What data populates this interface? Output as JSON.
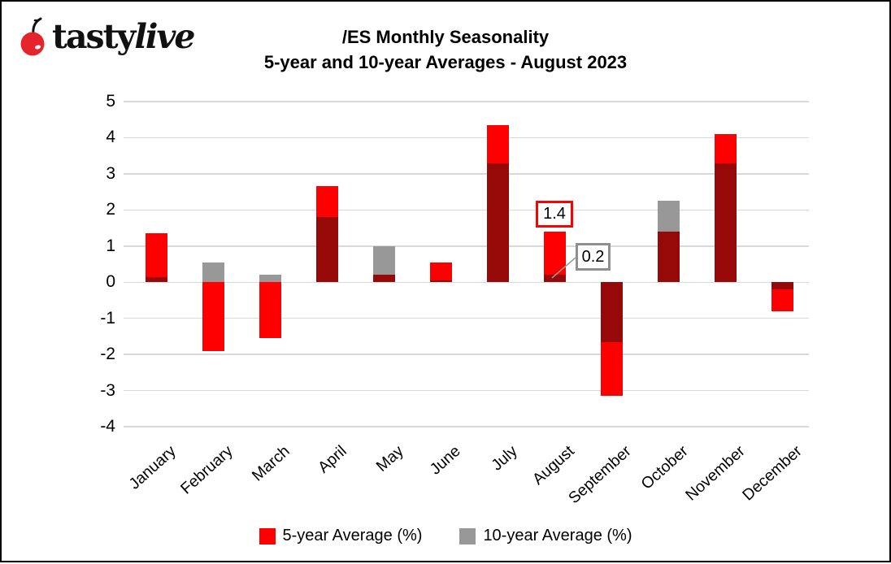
{
  "logo": {
    "brand": "tastylive",
    "brand_prefix": "tasty",
    "brand_suffix": "live",
    "icon": "cherry-icon",
    "cherry_color": "#e4262c"
  },
  "title": {
    "line1": "/ES Monthly Seasonality",
    "line2": "5-year and 10-year Averages - August 2023"
  },
  "legend": [
    {
      "label": "5-year Average (%)",
      "color": "#ff0000"
    },
    {
      "label": "10-year Average (%)",
      "color": "#989898"
    }
  ],
  "callouts": [
    {
      "value": "1.4",
      "border_color": "#ff0000",
      "series": "5-year Average (%)",
      "month": "August"
    },
    {
      "value": "0.2",
      "border_color": "#8f8f8f",
      "series": "10-year Average (%)",
      "month": "August"
    }
  ],
  "colors": {
    "five_year": "#ff0000",
    "ten_year": "#989898",
    "overlap": "#970909",
    "gridline": "#d9d9d9"
  },
  "chart_data": {
    "type": "bar",
    "overlay": true,
    "title": "/ES Monthly Seasonality 5-year and 10-year Averages - August 2023",
    "categories": [
      "January",
      "February",
      "March",
      "April",
      "May",
      "June",
      "July",
      "August",
      "September",
      "October",
      "November",
      "December"
    ],
    "series": [
      {
        "name": "5-year Average (%)",
        "color": "#ff0000",
        "values": [
          1.35,
          -1.9,
          -1.55,
          2.65,
          0.2,
          0.55,
          4.35,
          1.4,
          -3.15,
          1.4,
          4.1,
          -0.8
        ]
      },
      {
        "name": "10-year Average (%)",
        "color": "#989898",
        "values": [
          0.15,
          0.55,
          0.2,
          1.8,
          1.0,
          0.05,
          3.3,
          0.2,
          -1.65,
          2.25,
          3.3,
          -0.2
        ]
      }
    ],
    "overlap_color": "#970909",
    "ylim": [
      -4,
      5
    ],
    "yticks": [
      5,
      4,
      3,
      2,
      1,
      0,
      -1,
      -2,
      -3,
      -4
    ],
    "xlabel": "",
    "ylabel": "",
    "grid": true,
    "legend_position": "bottom",
    "annotations": [
      {
        "month": "August",
        "series": "5-year Average (%)",
        "value": 1.4
      },
      {
        "month": "August",
        "series": "10-year Average (%)",
        "value": 0.2
      }
    ]
  }
}
